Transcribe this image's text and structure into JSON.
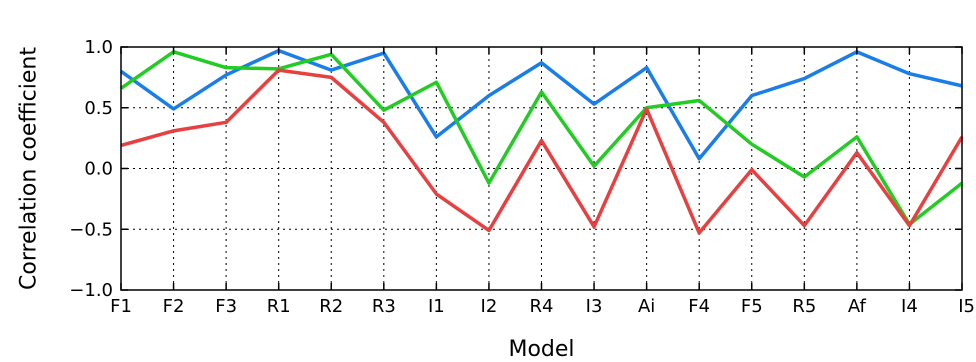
{
  "chart_data": {
    "type": "line",
    "xlabel": "Model",
    "ylabel": "Correlation coefficient",
    "ylim": [
      -1.0,
      1.0
    ],
    "yticks": [
      "−1.0",
      "−0.5",
      "0.0",
      "0.5",
      "1.0"
    ],
    "ytick_values": [
      -1.0,
      -0.5,
      0.0,
      0.5,
      1.0
    ],
    "grid": true,
    "categories": [
      "F1",
      "F2",
      "F3",
      "R1",
      "R2",
      "R3",
      "I1",
      "I2",
      "R4",
      "I3",
      "Ai",
      "F4",
      "F5",
      "R5",
      "Af",
      "I4",
      "I5"
    ],
    "series": [
      {
        "color": "#1a7ee8",
        "values": [
          0.8,
          0.49,
          0.77,
          0.97,
          0.81,
          0.95,
          0.26,
          0.6,
          0.87,
          0.53,
          0.83,
          0.08,
          0.6,
          0.74,
          0.96,
          0.78,
          0.68
        ]
      },
      {
        "color": "#22cc22",
        "values": [
          0.66,
          0.96,
          0.83,
          0.82,
          0.94,
          0.48,
          0.71,
          -0.12,
          0.63,
          0.02,
          0.5,
          0.56,
          0.2,
          -0.07,
          0.26,
          -0.46,
          -0.12
        ]
      },
      {
        "color": "#e84040",
        "values": [
          0.19,
          0.31,
          0.38,
          0.81,
          0.75,
          0.38,
          -0.21,
          -0.51,
          0.23,
          -0.48,
          0.49,
          -0.53,
          -0.01,
          -0.47,
          0.13,
          -0.47,
          0.26
        ]
      }
    ]
  }
}
